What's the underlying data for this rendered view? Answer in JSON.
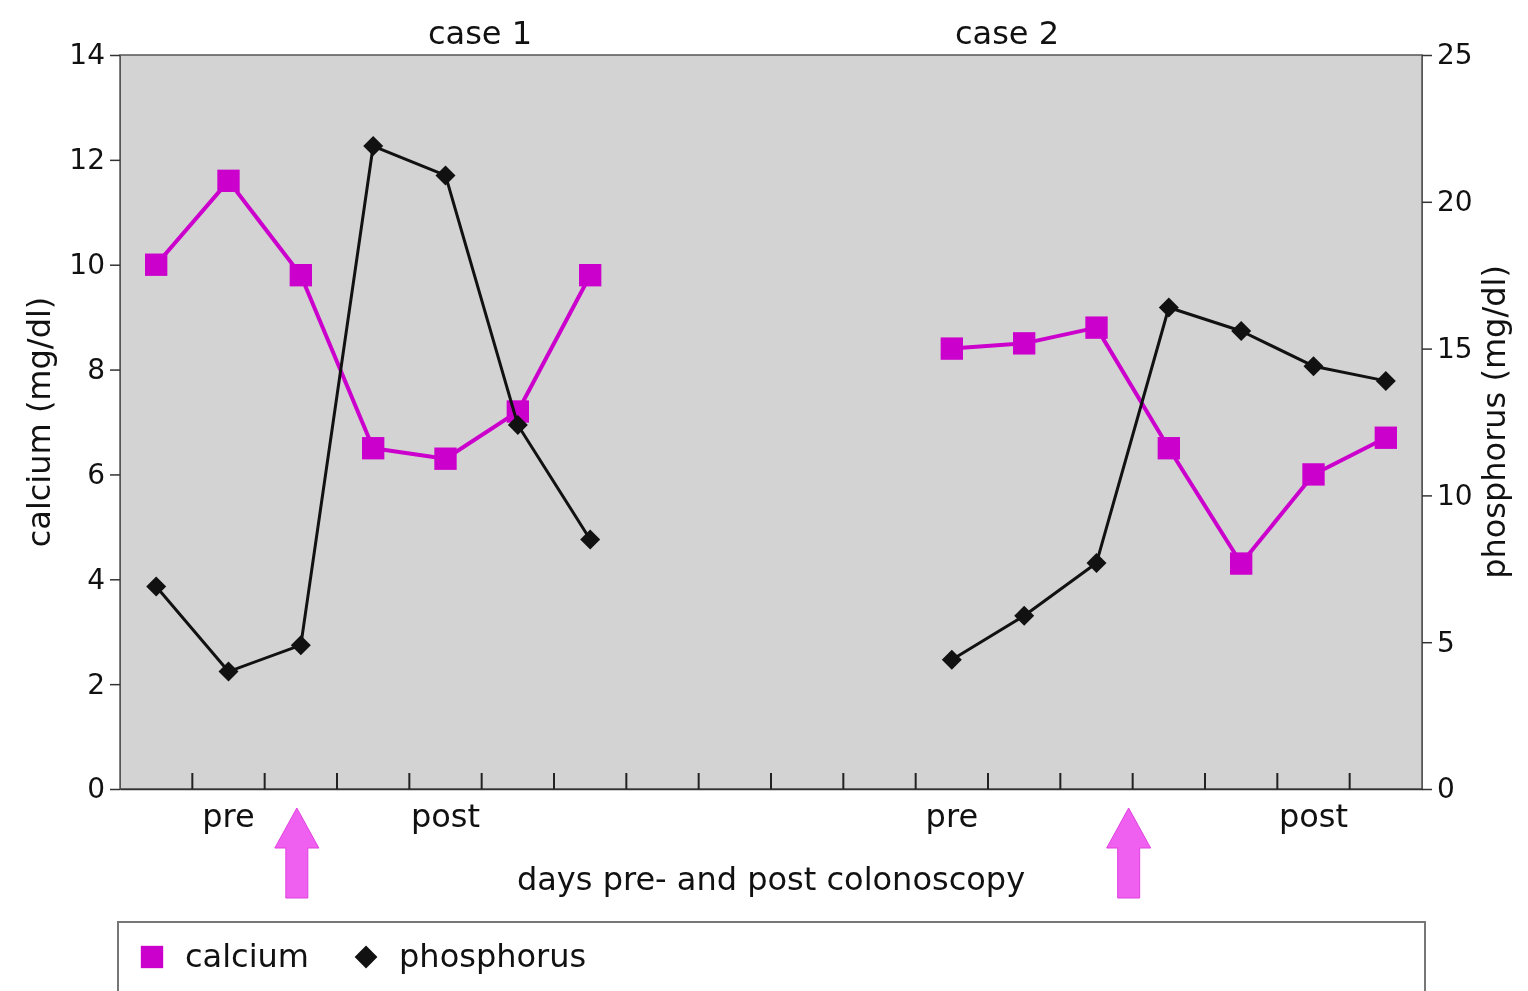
{
  "chart_data": {
    "type": "line",
    "xlabel": "days pre- and post colonoscopy",
    "ylabel": "calcium (mg/dl)",
    "y2label": "phosphorus (mg/dl)",
    "annotations": [
      "case 1",
      "case 2"
    ],
    "categories": [
      null,
      "pre",
      null,
      null,
      "post",
      null,
      null,
      null,
      null,
      null,
      null,
      "pre",
      null,
      null,
      null,
      null,
      "post",
      null
    ],
    "series": [
      {
        "name": "calcium",
        "color": "#cc00cc",
        "marker": "square",
        "values": [
          10,
          11.6,
          9.8,
          6.5,
          6.3,
          7.2,
          9.8,
          null,
          null,
          null,
          null,
          8.4,
          8.5,
          8.8,
          6.5,
          4.3,
          6.0,
          6.7
        ]
      },
      {
        "name": "phosphorus",
        "color": "#111111",
        "marker": "diamond",
        "axis": "y2",
        "values": [
          6.9,
          4.0,
          4.9,
          21.9,
          20.9,
          12.4,
          8.5,
          null,
          null,
          null,
          null,
          4.4,
          5.9,
          7.7,
          16.4,
          15.6,
          14.4,
          13.9
        ]
      }
    ],
    "ylim": [
      0,
      14
    ],
    "yticks": [
      0,
      2,
      4,
      6,
      8,
      10,
      12,
      14
    ],
    "y2lim": [
      0,
      25
    ],
    "y2ticks": [
      0,
      5,
      10,
      15,
      20,
      25
    ],
    "legend": "bottom"
  }
}
